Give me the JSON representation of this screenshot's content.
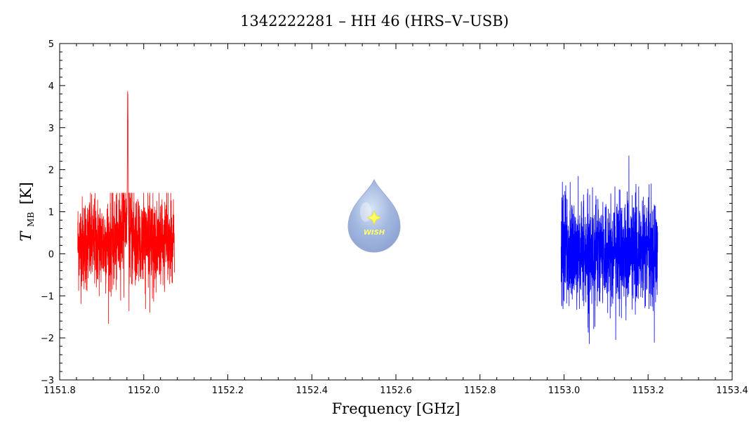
{
  "chart_data": {
    "type": "line",
    "title": "1342222281 – HH 46 (HRS–V–USB)",
    "xlabel": "Frequency [GHz]",
    "ylabel_main": "T",
    "ylabel_sub": "MB",
    "ylabel_unit": "[K]",
    "xlim": [
      1151.8,
      1153.4
    ],
    "ylim": [
      -3,
      5
    ],
    "xticks": [
      1151.8,
      1152.0,
      1152.2,
      1152.4,
      1152.6,
      1152.8,
      1153.0,
      1153.2,
      1153.4
    ],
    "xtick_labels": [
      "1151.8",
      "1152.0",
      "1152.2",
      "1152.4",
      "1152.6",
      "1152.8",
      "1153.0",
      "1153.2",
      "1153.4"
    ],
    "yticks": [
      -3,
      -2,
      -1,
      0,
      1,
      2,
      3,
      4,
      5
    ],
    "ytick_labels": [
      "−3",
      "−2",
      "−1",
      "0",
      "1",
      "2",
      "3",
      "4",
      "5"
    ],
    "grid": false,
    "logo_text": "WISH",
    "series": [
      {
        "color": "#ff0000",
        "x_range": [
          1151.843,
          1152.073
        ],
        "noise_sigma": 0.55,
        "baseline": 0.25,
        "min_value": -2.05,
        "max_value": 1.45,
        "emission_peak": {
          "x": 1151.962,
          "value": 4.1,
          "width": 0.0015
        },
        "broad_bump": {
          "x": 1151.955,
          "value": 0.6,
          "width": 0.01
        }
      },
      {
        "color": "#0000ff",
        "x_range": [
          1152.993,
          1153.223
        ],
        "noise_sigma": 0.65,
        "baseline": 0.05,
        "min_value": -2.6,
        "max_value": 2.45
      }
    ]
  }
}
